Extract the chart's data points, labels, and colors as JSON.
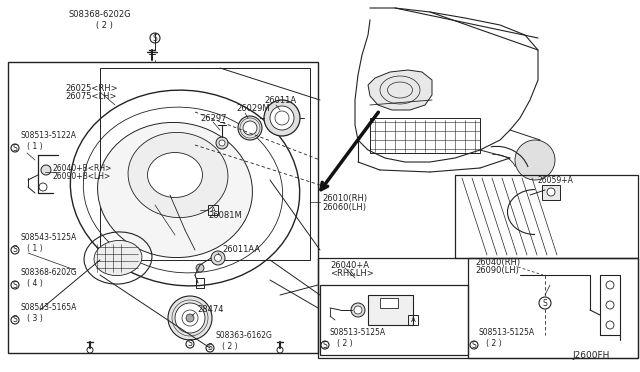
{
  "bg_color": "#ffffff",
  "lc": "#222222",
  "fig_code": "J2600FH",
  "fs": 6.0,
  "labels": {
    "top_bolt": "S08368-6202G\n   ( 2 )",
    "l1a": "26025<RH>",
    "l1b": "26075<LH>",
    "l3": "S08513-5122A\n   ( 1 )",
    "l4a": "26040+B<RH>",
    "l4b": "26090+B<LH>",
    "l5": "26297",
    "l6": "26029M",
    "l7": "26011A",
    "l8": "26081M",
    "l9": "26011AA",
    "l10": "28474",
    "l11": "S08543-5125A\n   ( 1 )",
    "l12": "S08368-6202G\n   ( 4 )",
    "l13": "S08543-5165A\n   ( 3 )",
    "l14": "S08363-6162G\n   ( 2 )",
    "l15a": "26010(RH)",
    "l15b": "26060(LH)",
    "l16a": "26040+A",
    "l16b": "<RH&LH>",
    "l17": "S08513-5125A\n   ( 2 )",
    "l18a": "26040(RH)",
    "l18b": "26090(LH)",
    "l19": "S08513-5125A\n   ( 2 )",
    "l20": "26059+A"
  }
}
